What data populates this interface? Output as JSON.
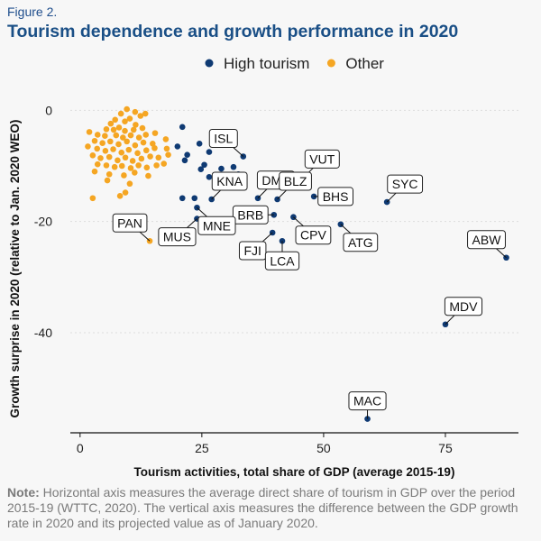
{
  "figure_label": "Figure 2.",
  "title": "Tourism dependence and growth performance in 2020",
  "note": {
    "prefix": "Note:",
    "text": "Horizontal axis measures the average direct share of tourism in GDP over the period 2015-19 (WTTC, 2020). The vertical axis measures the difference between the GDP growth rate in 2020 and its projected value as of January 2020."
  },
  "colors": {
    "high_tourism": "#0f3a73",
    "other": "#f5a623",
    "title": "#1a4f86"
  },
  "chart_data": {
    "type": "scatter",
    "title": "Tourism dependence and growth performance in 2020",
    "xlabel": "Tourism activities, total share of GDP (average 2015-19)",
    "ylabel": "Growth surprise in 2020 (relative to Jan. 2020 WEO)",
    "xlim": [
      -2,
      90
    ],
    "ylim": [
      -58,
      2
    ],
    "xticks": [
      0,
      25,
      50,
      75
    ],
    "yticks": [
      0,
      -20,
      -40
    ],
    "grid": "horizontal dotted",
    "legend_position": "top",
    "series": [
      {
        "name": "High tourism",
        "color": "#0f3a73",
        "points": [
          {
            "x": 33.5,
            "y": -8.3,
            "label": "ISL"
          },
          {
            "x": 36.5,
            "y": -15.8,
            "label": "DMA"
          },
          {
            "x": 46.0,
            "y": -12.0,
            "label": "VUT"
          },
          {
            "x": 40.5,
            "y": -16.0,
            "label": "BLZ"
          },
          {
            "x": 48.0,
            "y": -15.5,
            "label": "BHS"
          },
          {
            "x": 63.0,
            "y": -16.5,
            "label": "SYC"
          },
          {
            "x": 39.8,
            "y": -18.8,
            "label": "BRB"
          },
          {
            "x": 43.8,
            "y": -19.2,
            "label": "CPV"
          },
          {
            "x": 53.5,
            "y": -20.5,
            "label": "ATG"
          },
          {
            "x": 39.5,
            "y": -22.0,
            "label": "FJI"
          },
          {
            "x": 41.5,
            "y": -23.5,
            "label": "LCA"
          },
          {
            "x": 87.5,
            "y": -26.5,
            "label": "ABW"
          },
          {
            "x": 75.0,
            "y": -38.5,
            "label": "MDV"
          },
          {
            "x": 59.0,
            "y": -55.5,
            "label": "MAC"
          },
          {
            "x": 24.0,
            "y": -17.5,
            "label": "MNE"
          },
          {
            "x": 24.0,
            "y": -19.5,
            "label": "MUS"
          },
          {
            "x": 27.0,
            "y": -16.0,
            "label": "KNA"
          },
          {
            "x": 21.0,
            "y": -3.0
          },
          {
            "x": 20.0,
            "y": -6.5
          },
          {
            "x": 24.5,
            "y": -6.0
          },
          {
            "x": 22.0,
            "y": -8.0
          },
          {
            "x": 21.5,
            "y": -9.0
          },
          {
            "x": 26.5,
            "y": -7.5
          },
          {
            "x": 25.5,
            "y": -9.8
          },
          {
            "x": 24.8,
            "y": -10.6
          },
          {
            "x": 29.0,
            "y": -10.5
          },
          {
            "x": 31.5,
            "y": -10.2
          },
          {
            "x": 32.5,
            "y": -11.5
          },
          {
            "x": 26.5,
            "y": -12.0
          },
          {
            "x": 29.0,
            "y": -13.5
          },
          {
            "x": 21.0,
            "y": -15.8
          },
          {
            "x": 23.5,
            "y": -15.8
          }
        ]
      },
      {
        "name": "Other",
        "color": "#f5a623",
        "points": [
          {
            "x": 14.3,
            "y": -23.5,
            "label": "PAN"
          },
          {
            "x": 8.4,
            "y": -0.6
          },
          {
            "x": 9.6,
            "y": 0.2
          },
          {
            "x": 11.3,
            "y": -0.3
          },
          {
            "x": 12.4,
            "y": -1.0
          },
          {
            "x": 13.4,
            "y": -0.6
          },
          {
            "x": 7.2,
            "y": -1.7
          },
          {
            "x": 9.2,
            "y": -2.0
          },
          {
            "x": 10.2,
            "y": -1.5
          },
          {
            "x": 11.4,
            "y": -2.6
          },
          {
            "x": 6.3,
            "y": -2.4
          },
          {
            "x": 8.0,
            "y": -3.1
          },
          {
            "x": 5.4,
            "y": -3.4
          },
          {
            "x": 6.9,
            "y": -3.5
          },
          {
            "x": 9.2,
            "y": -3.7
          },
          {
            "x": 11.0,
            "y": -3.5
          },
          {
            "x": 12.8,
            "y": -3.2
          },
          {
            "x": 1.9,
            "y": -3.9
          },
          {
            "x": 3.6,
            "y": -4.4
          },
          {
            "x": 5.1,
            "y": -4.6
          },
          {
            "x": 7.4,
            "y": -4.5
          },
          {
            "x": 8.8,
            "y": -4.9
          },
          {
            "x": 10.4,
            "y": -4.5
          },
          {
            "x": 12.1,
            "y": -4.9
          },
          {
            "x": 13.5,
            "y": -4.4
          },
          {
            "x": 15.4,
            "y": -4.1
          },
          {
            "x": 3.0,
            "y": -5.5
          },
          {
            "x": 4.6,
            "y": -5.9
          },
          {
            "x": 6.2,
            "y": -5.6
          },
          {
            "x": 7.9,
            "y": -6.1
          },
          {
            "x": 9.6,
            "y": -5.6
          },
          {
            "x": 11.3,
            "y": -6.3
          },
          {
            "x": 13.0,
            "y": -5.8
          },
          {
            "x": 14.9,
            "y": -6.0
          },
          {
            "x": 17.6,
            "y": -5.2
          },
          {
            "x": 1.6,
            "y": -6.5
          },
          {
            "x": 3.5,
            "y": -6.9
          },
          {
            "x": 5.2,
            "y": -7.3
          },
          {
            "x": 6.8,
            "y": -7.0
          },
          {
            "x": 8.5,
            "y": -7.6
          },
          {
            "x": 10.0,
            "y": -7.1
          },
          {
            "x": 11.8,
            "y": -7.7
          },
          {
            "x": 13.6,
            "y": -7.2
          },
          {
            "x": 15.3,
            "y": -6.8
          },
          {
            "x": 17.8,
            "y": -6.9
          },
          {
            "x": 2.6,
            "y": -8.1
          },
          {
            "x": 4.2,
            "y": -8.6
          },
          {
            "x": 6.0,
            "y": -8.4
          },
          {
            "x": 7.7,
            "y": -9.0
          },
          {
            "x": 9.3,
            "y": -8.5
          },
          {
            "x": 10.8,
            "y": -9.1
          },
          {
            "x": 12.6,
            "y": -8.7
          },
          {
            "x": 14.4,
            "y": -8.3
          },
          {
            "x": 16.1,
            "y": -8.5
          },
          {
            "x": 18.1,
            "y": -8.0
          },
          {
            "x": 3.6,
            "y": -9.7
          },
          {
            "x": 5.4,
            "y": -9.9
          },
          {
            "x": 7.1,
            "y": -10.2
          },
          {
            "x": 8.6,
            "y": -10.0
          },
          {
            "x": 10.4,
            "y": -10.4
          },
          {
            "x": 12.0,
            "y": -9.9
          },
          {
            "x": 13.7,
            "y": -10.3
          },
          {
            "x": 15.7,
            "y": -9.9
          },
          {
            "x": 17.2,
            "y": -9.6
          },
          {
            "x": 3.0,
            "y": -11.0
          },
          {
            "x": 6.0,
            "y": -11.5
          },
          {
            "x": 9.0,
            "y": -11.7
          },
          {
            "x": 11.2,
            "y": -11.2
          },
          {
            "x": 14.0,
            "y": -11.8
          },
          {
            "x": 5.6,
            "y": -12.6
          },
          {
            "x": 10.2,
            "y": -13.2
          },
          {
            "x": 9.3,
            "y": -14.8
          },
          {
            "x": 2.6,
            "y": -15.8
          },
          {
            "x": 8.2,
            "y": -15.4
          }
        ]
      }
    ],
    "annotations": [
      "ISL",
      "DMA",
      "VUT",
      "BLZ",
      "BHS",
      "SYC",
      "BRB",
      "CPV",
      "ATG",
      "FJI",
      "LCA",
      "ABW",
      "MDV",
      "MAC",
      "MNE",
      "MUS",
      "KNA",
      "PAN"
    ]
  },
  "callouts": [
    {
      "text": "ISL",
      "x": 33.5,
      "y": -8.3,
      "side": "above-left"
    },
    {
      "text": "DMA",
      "x": 36.5,
      "y": -15.8,
      "side": "above-right"
    },
    {
      "text": "VUT",
      "x": 46.0,
      "y": -12.0,
      "side": "above-right"
    },
    {
      "text": "BLZ",
      "x": 40.5,
      "y": -16.0,
      "side": "above-right"
    },
    {
      "text": "BHS",
      "x": 48.0,
      "y": -15.5,
      "side": "right"
    },
    {
      "text": "SYC",
      "x": 63.0,
      "y": -16.5,
      "side": "above-right"
    },
    {
      "text": "BRB",
      "x": 39.8,
      "y": -18.8,
      "side": "left"
    },
    {
      "text": "CPV",
      "x": 43.8,
      "y": -19.2,
      "side": "below-right"
    },
    {
      "text": "ATG",
      "x": 53.5,
      "y": -20.5,
      "side": "below-right"
    },
    {
      "text": "FJI",
      "x": 39.5,
      "y": -22.0,
      "side": "below-left"
    },
    {
      "text": "LCA",
      "x": 41.5,
      "y": -23.5,
      "side": "below"
    },
    {
      "text": "ABW",
      "x": 87.5,
      "y": -26.5,
      "side": "above-left"
    },
    {
      "text": "MDV",
      "x": 75.0,
      "y": -38.5,
      "side": "above-right"
    },
    {
      "text": "MAC",
      "x": 59.0,
      "y": -55.5,
      "side": "above"
    },
    {
      "text": "MNE",
      "x": 24.0,
      "y": -17.5,
      "side": "below-right"
    },
    {
      "text": "MUS",
      "x": 24.0,
      "y": -19.5,
      "side": "below-left"
    },
    {
      "text": "KNA",
      "x": 27.0,
      "y": -16.0,
      "side": "above-right"
    },
    {
      "text": "PAN",
      "x": 14.3,
      "y": -23.5,
      "side": "above-left"
    }
  ]
}
